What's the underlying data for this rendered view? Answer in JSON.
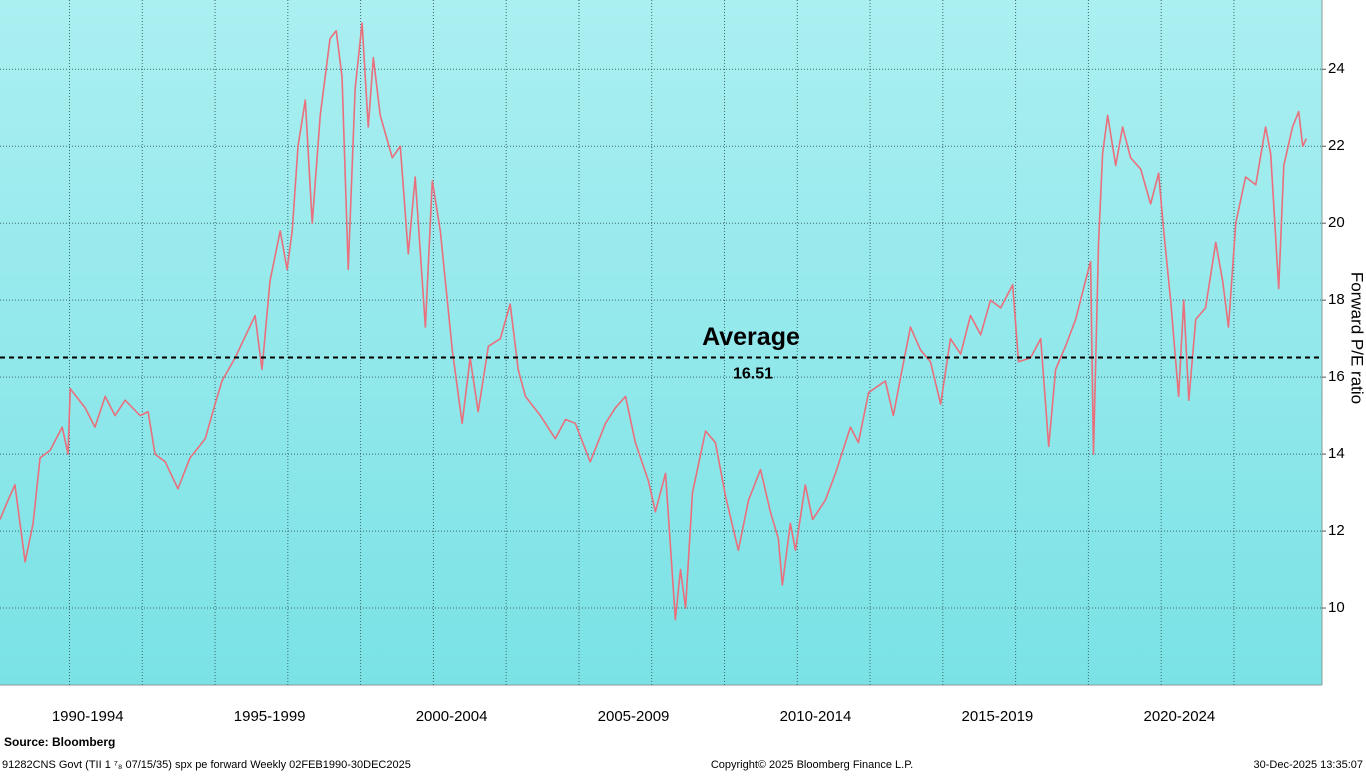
{
  "chart_data": {
    "type": "line",
    "average": {
      "label": "Average",
      "value": 16.51
    },
    "y_label": "Forward P/E ratio",
    "source": "Source:  Bloomberg",
    "footnote": "91282CNS Govt (TII 1 ⁷₈ 07/15/35) spx pe forward Weekly 02FEB1990-30DEC2025",
    "copyright": "Copyright© 2025 Bloomberg Finance L.P.",
    "timestamp": "30-Dec-2025 13:35:07",
    "xlim": [
      1990.09,
      2026.42
    ],
    "xticks": [
      {
        "value": 1992.5,
        "label": "1990-1994"
      },
      {
        "value": 1997.5,
        "label": "1995-1999"
      },
      {
        "value": 2002.5,
        "label": "2000-2004"
      },
      {
        "value": 2007.5,
        "label": "2005-2009"
      },
      {
        "value": 2012.5,
        "label": "2010-2014"
      },
      {
        "value": 2017.5,
        "label": "2015-2019"
      },
      {
        "value": 2022.5,
        "label": "2020-2024"
      }
    ],
    "xgrid": [
      1992,
      1994,
      1996,
      1998,
      2000,
      2002,
      2004,
      2006,
      2008,
      2010,
      2012,
      2014,
      2016,
      2018,
      2020,
      2022,
      2024
    ],
    "ylim": [
      8,
      25.8
    ],
    "yticks": [
      10,
      12,
      14,
      16,
      18,
      20,
      22,
      24
    ],
    "grid": true,
    "x": [
      1990.09,
      1990.31,
      1990.5,
      1990.78,
      1991.0,
      1991.19,
      1991.47,
      1991.8,
      1991.96,
      1992.02,
      1992.43,
      1992.7,
      1992.98,
      1993.25,
      1993.53,
      1993.94,
      1994.16,
      1994.35,
      1994.63,
      1994.98,
      1995.31,
      1995.73,
      1996.0,
      1996.19,
      1996.55,
      1997.1,
      1997.29,
      1997.51,
      1997.79,
      1997.98,
      1998.12,
      1998.28,
      1998.48,
      1998.67,
      1998.89,
      1999.16,
      1999.33,
      1999.49,
      1999.66,
      1999.85,
      2000.04,
      2000.21,
      2000.35,
      2000.54,
      2000.87,
      2001.09,
      2001.31,
      2001.5,
      2001.78,
      2001.97,
      2002.19,
      2002.52,
      2002.79,
      2003.01,
      2003.23,
      2003.51,
      2003.84,
      2004.11,
      2004.33,
      2004.53,
      2004.94,
      2005.35,
      2005.63,
      2005.9,
      2006.31,
      2006.73,
      2007.0,
      2007.28,
      2007.55,
      2007.91,
      2008.1,
      2008.38,
      2008.65,
      2008.79,
      2008.93,
      2009.12,
      2009.48,
      2009.75,
      2010.03,
      2010.38,
      2010.66,
      2010.99,
      2011.26,
      2011.48,
      2011.59,
      2011.81,
      2011.95,
      2012.22,
      2012.42,
      2012.77,
      2013.05,
      2013.46,
      2013.68,
      2013.96,
      2014.42,
      2014.64,
      2014.84,
      2015.11,
      2015.39,
      2015.66,
      2015.94,
      2016.21,
      2016.49,
      2016.76,
      2017.04,
      2017.31,
      2017.59,
      2017.92,
      2018.08,
      2018.41,
      2018.69,
      2018.91,
      2019.1,
      2019.37,
      2019.65,
      2019.92,
      2020.06,
      2020.14,
      2020.28,
      2020.39,
      2020.53,
      2020.75,
      2020.94,
      2021.16,
      2021.44,
      2021.71,
      2021.93,
      2022.07,
      2022.26,
      2022.48,
      2022.62,
      2022.76,
      2022.95,
      2023.22,
      2023.5,
      2023.69,
      2023.85,
      2024.05,
      2024.32,
      2024.6,
      2024.87,
      2025.01,
      2025.23,
      2025.37,
      2025.61,
      2025.78,
      2025.89,
      2025.99
    ],
    "series": [
      {
        "color": "#ea6f7c",
        "values": [
          12.3,
          12.8,
          13.2,
          11.2,
          12.2,
          13.9,
          14.1,
          14.7,
          14.0,
          15.7,
          15.2,
          14.7,
          15.5,
          15.0,
          15.4,
          15.0,
          15.1,
          14.0,
          13.8,
          13.1,
          13.9,
          14.4,
          15.3,
          15.9,
          16.5,
          17.6,
          16.2,
          18.5,
          19.8,
          18.8,
          19.8,
          22.0,
          23.2,
          20.0,
          22.8,
          24.8,
          25.0,
          23.8,
          18.8,
          23.5,
          25.2,
          22.5,
          24.3,
          22.8,
          21.7,
          22.0,
          19.2,
          21.2,
          17.3,
          21.1,
          19.8,
          16.7,
          14.8,
          16.5,
          15.1,
          16.8,
          17.0,
          17.9,
          16.2,
          15.5,
          15.0,
          14.4,
          14.9,
          14.8,
          13.8,
          14.8,
          15.2,
          15.5,
          14.3,
          13.3,
          12.5,
          13.5,
          9.7,
          11.0,
          10.0,
          13.0,
          14.6,
          14.3,
          12.9,
          11.5,
          12.8,
          13.6,
          12.5,
          11.8,
          10.6,
          12.2,
          11.5,
          13.2,
          12.3,
          12.8,
          13.5,
          14.7,
          14.3,
          15.6,
          15.9,
          15.0,
          16.0,
          17.3,
          16.7,
          16.4,
          15.3,
          17.0,
          16.6,
          17.6,
          17.1,
          18.0,
          17.8,
          18.4,
          16.4,
          16.5,
          17.0,
          14.2,
          16.2,
          16.8,
          17.5,
          18.5,
          19.0,
          14.0,
          19.5,
          21.8,
          22.8,
          21.5,
          22.5,
          21.7,
          21.4,
          20.5,
          21.3,
          19.8,
          18.0,
          15.5,
          18.0,
          15.4,
          17.5,
          17.8,
          19.5,
          18.5,
          17.3,
          20.0,
          21.2,
          21.0,
          22.5,
          21.8,
          18.3,
          21.5,
          22.5,
          22.9,
          22.0,
          22.2
        ]
      }
    ]
  }
}
